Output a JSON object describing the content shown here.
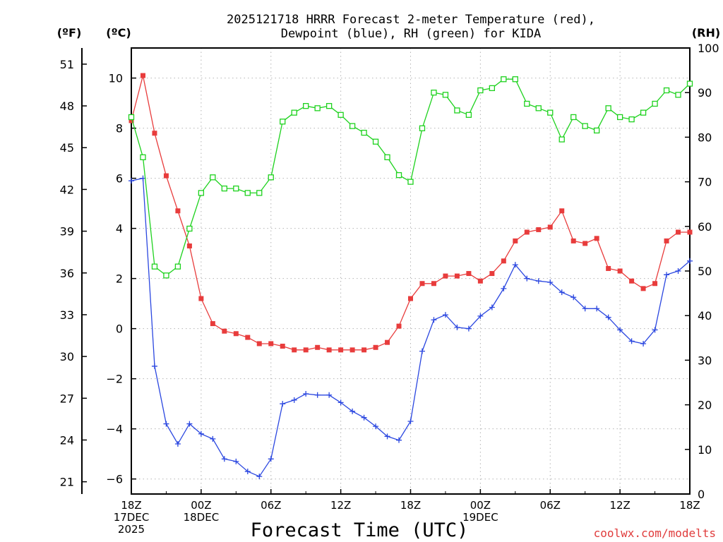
{
  "chart_data": {
    "type": "line",
    "title_line1": "2025121718 HRRR Forecast 2-meter Temperature (red),",
    "title_line2": "Dewpoint (blue), RH (green) for KIDA",
    "xlabel": "Forecast Time (UTC)",
    "credit": "coolwx.com/modelts",
    "unit_f": "(ºF)",
    "unit_c": "(ºC)",
    "unit_rh": "(RH)",
    "x_hours": [
      0,
      1,
      2,
      3,
      4,
      5,
      6,
      7,
      8,
      9,
      10,
      11,
      12,
      13,
      14,
      15,
      16,
      17,
      18,
      19,
      20,
      21,
      22,
      23,
      24,
      25,
      26,
      27,
      28,
      29,
      30,
      31,
      32,
      33,
      34,
      35,
      36,
      37,
      38,
      39,
      40,
      41,
      42,
      43,
      44,
      45,
      46,
      47,
      48
    ],
    "xlim": [
      0,
      48
    ],
    "ylim_c": [
      -6.6,
      11.2
    ],
    "ylim_rh": [
      0,
      100
    ],
    "y_ticks_c": [
      10,
      8,
      6,
      4,
      2,
      0,
      -2,
      -4,
      -6
    ],
    "y_ticks_f": [
      51,
      48,
      45,
      42,
      39,
      36,
      33,
      30,
      27,
      24,
      21
    ],
    "y_ticks_rh": [
      100,
      90,
      80,
      70,
      60,
      50,
      40,
      30,
      20,
      10,
      0
    ],
    "x_ticks": [
      {
        "hour": 0,
        "lines": [
          "18Z",
          "17DEC",
          "2025"
        ]
      },
      {
        "hour": 6,
        "lines": [
          "00Z",
          "18DEC"
        ]
      },
      {
        "hour": 12,
        "lines": [
          "06Z"
        ]
      },
      {
        "hour": 18,
        "lines": [
          "12Z"
        ]
      },
      {
        "hour": 24,
        "lines": [
          "18Z"
        ]
      },
      {
        "hour": 30,
        "lines": [
          "00Z",
          "19DEC"
        ]
      },
      {
        "hour": 36,
        "lines": [
          "06Z"
        ]
      },
      {
        "hour": 42,
        "lines": [
          "12Z"
        ]
      },
      {
        "hour": 48,
        "lines": [
          "18Z"
        ]
      }
    ],
    "series": [
      {
        "name": "2-meter Temperature",
        "axis": "C",
        "color": "#e83c3c",
        "marker": "filled-square",
        "values": [
          8.3,
          10.1,
          7.8,
          6.1,
          4.7,
          3.3,
          1.2,
          0.2,
          -0.1,
          -0.2,
          -0.35,
          -0.6,
          -0.6,
          -0.7,
          -0.85,
          -0.85,
          -0.75,
          -0.85,
          -0.85,
          -0.85,
          -0.85,
          -0.75,
          -0.55,
          0.1,
          1.2,
          1.8,
          1.8,
          2.1,
          2.1,
          2.2,
          1.9,
          2.2,
          2.7,
          3.5,
          3.85,
          3.95,
          4.05,
          4.7,
          3.5,
          3.4,
          3.6,
          2.4,
          2.3,
          1.9,
          1.6,
          1.8,
          3.5,
          3.85,
          3.85
        ]
      },
      {
        "name": "Dewpoint",
        "axis": "C",
        "color": "#2b47e0",
        "marker": "plus",
        "values": [
          5.9,
          6.0,
          -1.5,
          -3.8,
          -4.6,
          -3.8,
          -4.2,
          -4.4,
          -5.2,
          -5.3,
          -5.7,
          -5.9,
          -5.2,
          -3.0,
          -2.85,
          -2.6,
          -2.65,
          -2.65,
          -2.95,
          -3.3,
          -3.55,
          -3.9,
          -4.3,
          -4.45,
          -3.7,
          -0.9,
          0.35,
          0.55,
          0.05,
          0.0,
          0.5,
          0.85,
          1.6,
          2.55,
          2.0,
          1.9,
          1.85,
          1.45,
          1.25,
          0.8,
          0.8,
          0.45,
          -0.05,
          -0.5,
          -0.6,
          -0.05,
          2.15,
          2.3,
          2.7
        ]
      },
      {
        "name": "RH",
        "axis": "RH",
        "color": "#1ed21e",
        "marker": "open-square",
        "values": [
          84.5,
          75.5,
          51.0,
          49.0,
          51.0,
          59.5,
          67.5,
          71.0,
          68.5,
          68.5,
          67.5,
          67.5,
          71.0,
          83.5,
          85.5,
          87.0,
          86.5,
          87.0,
          85.0,
          82.5,
          81.0,
          79.0,
          75.5,
          71.5,
          70.0,
          82.0,
          90.0,
          89.5,
          86.0,
          85.0,
          90.5,
          91.0,
          93.0,
          93.0,
          87.5,
          86.5,
          85.5,
          79.5,
          84.5,
          82.5,
          81.5,
          86.5,
          84.5,
          84.0,
          85.5,
          87.5,
          90.5,
          89.5,
          92.0
        ]
      }
    ]
  }
}
